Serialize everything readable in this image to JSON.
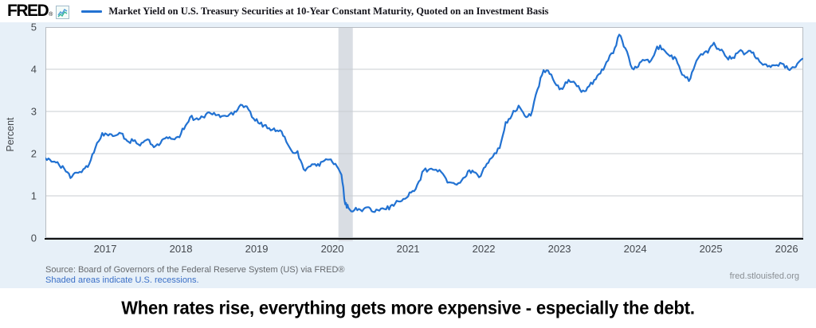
{
  "header": {
    "logo_text": "FRED",
    "registered": "®",
    "series_title": "Market Yield on U.S. Treasury Securities at 10-Year Constant Maturity, Quoted on an Investment Basis"
  },
  "footer": {
    "source_line": "Source: Board of Governors of the Federal Reserve System (US) via FRED®",
    "recession_note": "Shaded areas indicate U.S. recessions.",
    "site_url": "fred.stlouisfed.org"
  },
  "caption_text": "When rates rise, everything gets more expensive - especially the debt.",
  "colors": {
    "series_line": "#2272d2",
    "chart_background": "#e7f0f8",
    "plot_background": "#ffffff",
    "gridline": "#c9cdd2",
    "plot_border": "#b7bcc2",
    "axis_line": "#111111",
    "recession_band": "#d9dde3",
    "axis_text": "#44484d",
    "link_blue": "#3a6fc7"
  },
  "chart_data": {
    "type": "line",
    "title": "Market Yield on U.S. Treasury Securities at 10-Year Constant Maturity, Quoted on an Investment Basis",
    "xlabel": "",
    "ylabel": "Percent",
    "ylim": [
      0,
      5
    ],
    "y_ticks": [
      "0",
      "1",
      "2",
      "3",
      "4",
      "5"
    ],
    "x_ticks": [
      "2017",
      "2018",
      "2019",
      "2020",
      "2021",
      "2022",
      "2023",
      "2024",
      "2025",
      "2026"
    ],
    "x_tick_positions": [
      2017,
      2018,
      2019,
      2020,
      2021,
      2022,
      2023,
      2024,
      2025,
      2026
    ],
    "x_range": [
      2016.21,
      2026.22
    ],
    "grid": true,
    "legend_position": "top",
    "recession_bands": [
      {
        "from": 2020.08,
        "to": 2020.27
      }
    ],
    "series": [
      {
        "name": "Market Yield on U.S. Treasury Securities at 10-Year Constant Maturity, Quoted on an Investment Basis",
        "unit": "Percent",
        "points": [
          [
            2016.21,
            1.89
          ],
          [
            2016.29,
            1.81
          ],
          [
            2016.37,
            1.8
          ],
          [
            2016.46,
            1.64
          ],
          [
            2016.54,
            1.42
          ],
          [
            2016.62,
            1.55
          ],
          [
            2016.71,
            1.63
          ],
          [
            2016.79,
            1.76
          ],
          [
            2016.87,
            2.14
          ],
          [
            2016.96,
            2.49
          ],
          [
            2017.04,
            2.43
          ],
          [
            2017.12,
            2.42
          ],
          [
            2017.21,
            2.48
          ],
          [
            2017.29,
            2.3
          ],
          [
            2017.37,
            2.3
          ],
          [
            2017.46,
            2.19
          ],
          [
            2017.54,
            2.32
          ],
          [
            2017.62,
            2.21
          ],
          [
            2017.71,
            2.2
          ],
          [
            2017.79,
            2.36
          ],
          [
            2017.87,
            2.35
          ],
          [
            2017.96,
            2.4
          ],
          [
            2018.04,
            2.58
          ],
          [
            2018.12,
            2.86
          ],
          [
            2018.21,
            2.84
          ],
          [
            2018.29,
            2.87
          ],
          [
            2018.37,
            2.98
          ],
          [
            2018.46,
            2.91
          ],
          [
            2018.54,
            2.89
          ],
          [
            2018.62,
            2.89
          ],
          [
            2018.71,
            3.0
          ],
          [
            2018.79,
            3.16
          ],
          [
            2018.87,
            3.12
          ],
          [
            2018.96,
            2.83
          ],
          [
            2019.04,
            2.71
          ],
          [
            2019.12,
            2.68
          ],
          [
            2019.21,
            2.57
          ],
          [
            2019.29,
            2.53
          ],
          [
            2019.37,
            2.4
          ],
          [
            2019.46,
            2.07
          ],
          [
            2019.54,
            2.06
          ],
          [
            2019.62,
            1.63
          ],
          [
            2019.71,
            1.7
          ],
          [
            2019.79,
            1.71
          ],
          [
            2019.87,
            1.81
          ],
          [
            2019.96,
            1.86
          ],
          [
            2020.04,
            1.76
          ],
          [
            2020.12,
            1.5
          ],
          [
            2020.17,
            0.8
          ],
          [
            2020.21,
            0.72
          ],
          [
            2020.29,
            0.66
          ],
          [
            2020.37,
            0.67
          ],
          [
            2020.46,
            0.73
          ],
          [
            2020.54,
            0.62
          ],
          [
            2020.62,
            0.65
          ],
          [
            2020.71,
            0.68
          ],
          [
            2020.79,
            0.79
          ],
          [
            2020.87,
            0.87
          ],
          [
            2020.96,
            0.93
          ],
          [
            2021.04,
            1.08
          ],
          [
            2021.12,
            1.26
          ],
          [
            2021.21,
            1.61
          ],
          [
            2021.29,
            1.64
          ],
          [
            2021.37,
            1.62
          ],
          [
            2021.46,
            1.52
          ],
          [
            2021.54,
            1.32
          ],
          [
            2021.62,
            1.28
          ],
          [
            2021.71,
            1.37
          ],
          [
            2021.79,
            1.58
          ],
          [
            2021.87,
            1.56
          ],
          [
            2021.96,
            1.47
          ],
          [
            2022.04,
            1.76
          ],
          [
            2022.12,
            1.93
          ],
          [
            2022.21,
            2.13
          ],
          [
            2022.29,
            2.75
          ],
          [
            2022.37,
            2.9
          ],
          [
            2022.46,
            3.14
          ],
          [
            2022.54,
            2.9
          ],
          [
            2022.62,
            2.9
          ],
          [
            2022.71,
            3.52
          ],
          [
            2022.79,
            3.98
          ],
          [
            2022.87,
            3.89
          ],
          [
            2022.96,
            3.62
          ],
          [
            2023.04,
            3.53
          ],
          [
            2023.12,
            3.75
          ],
          [
            2023.21,
            3.66
          ],
          [
            2023.29,
            3.46
          ],
          [
            2023.37,
            3.57
          ],
          [
            2023.46,
            3.75
          ],
          [
            2023.54,
            3.9
          ],
          [
            2023.62,
            4.17
          ],
          [
            2023.71,
            4.38
          ],
          [
            2023.79,
            4.82
          ],
          [
            2023.87,
            4.5
          ],
          [
            2023.96,
            4.02
          ],
          [
            2024.04,
            4.06
          ],
          [
            2024.12,
            4.21
          ],
          [
            2024.21,
            4.21
          ],
          [
            2024.29,
            4.54
          ],
          [
            2024.37,
            4.48
          ],
          [
            2024.46,
            4.31
          ],
          [
            2024.54,
            4.25
          ],
          [
            2024.62,
            3.87
          ],
          [
            2024.71,
            3.72
          ],
          [
            2024.79,
            4.1
          ],
          [
            2024.87,
            4.36
          ],
          [
            2024.96,
            4.39
          ],
          [
            2025.04,
            4.63
          ],
          [
            2025.12,
            4.45
          ],
          [
            2025.21,
            4.28
          ],
          [
            2025.29,
            4.28
          ],
          [
            2025.37,
            4.42
          ],
          [
            2025.46,
            4.38
          ],
          [
            2025.54,
            4.39
          ],
          [
            2025.62,
            4.26
          ],
          [
            2025.71,
            4.12
          ],
          [
            2025.79,
            4.05
          ],
          [
            2025.87,
            4.1
          ],
          [
            2025.96,
            4.12
          ],
          [
            2026.04,
            3.98
          ],
          [
            2026.12,
            4.05
          ],
          [
            2026.21,
            4.25
          ]
        ]
      }
    ]
  }
}
